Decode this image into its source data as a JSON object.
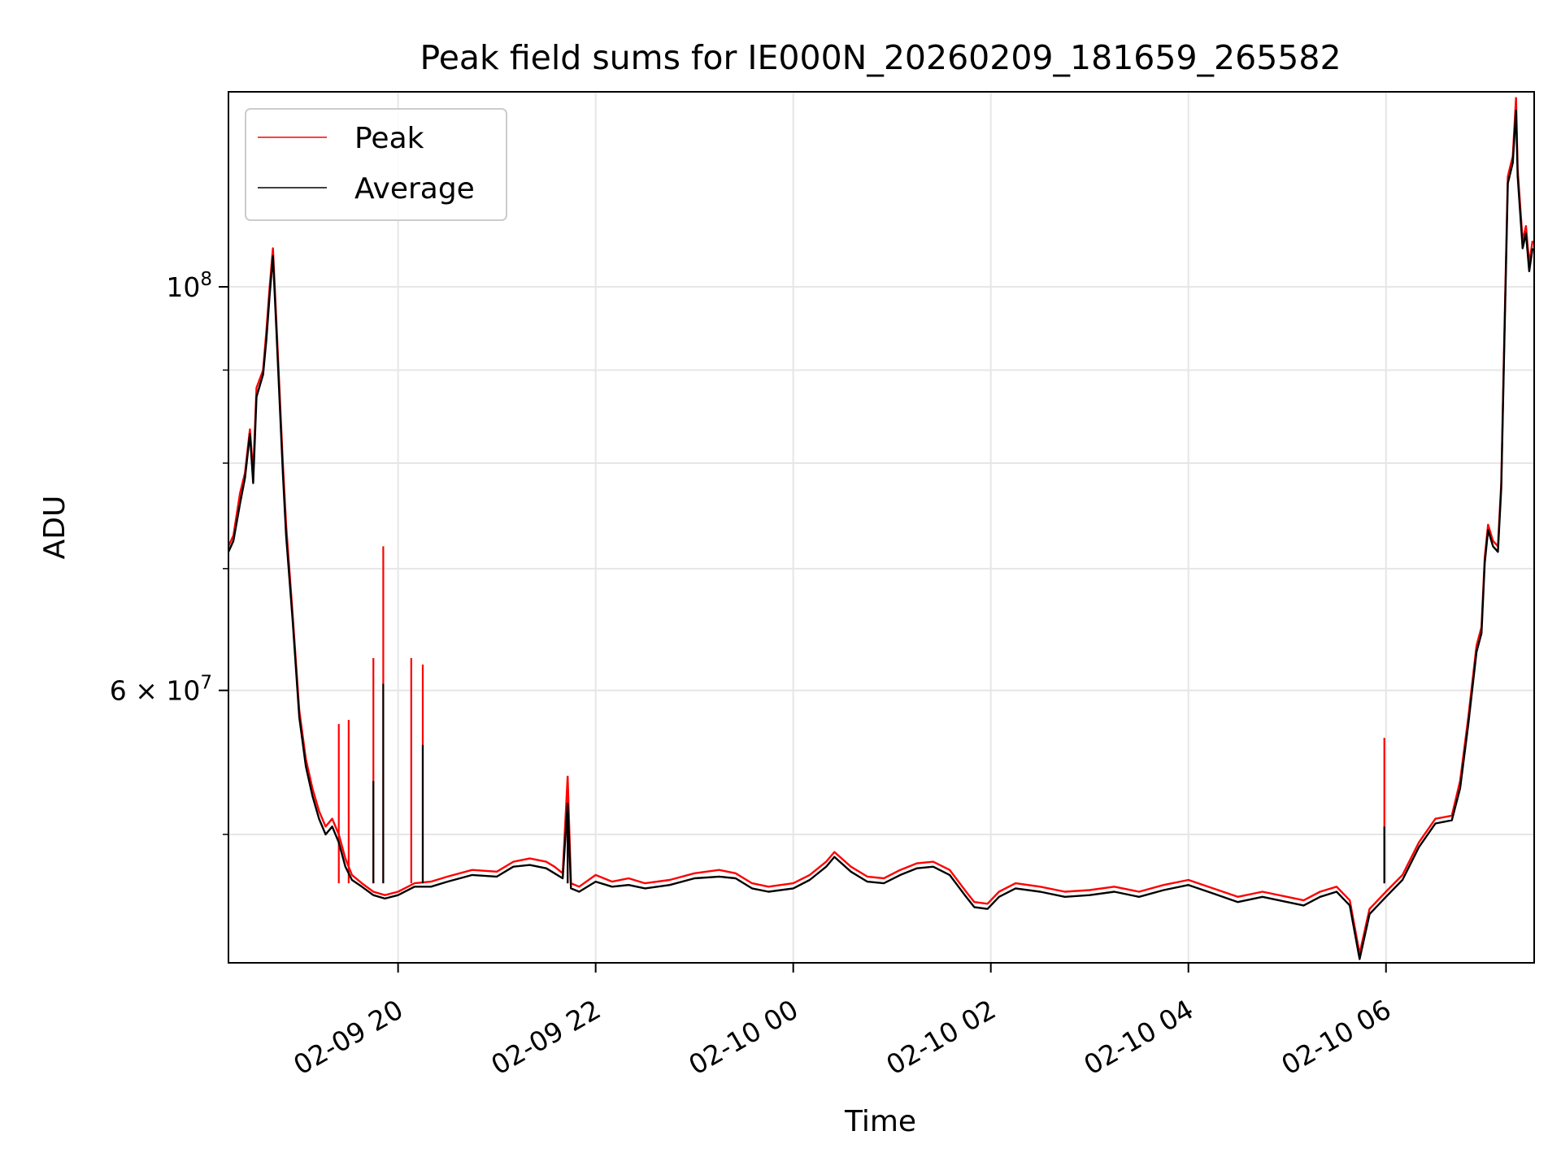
{
  "chart_data": {
    "type": "line",
    "title": "Peak field sums for IE000N_20260209_181659_265582",
    "xlabel": "Time",
    "ylabel": "ADU",
    "yscale": "log",
    "x_range": [
      "2026-02-09 18:16:59",
      "2026-02-10 07:30:00"
    ],
    "ylim": [
      42500000,
      128000000
    ],
    "x_ticks": [
      "02-09 20",
      "02-09 22",
      "02-10 00",
      "02-10 02",
      "02-10 04",
      "02-10 06"
    ],
    "x_tick_times": [
      "2026-02-09 20:00",
      "2026-02-09 22:00",
      "2026-02-10 00:00",
      "2026-02-10 02:00",
      "2026-02-10 04:00",
      "2026-02-10 06:00"
    ],
    "y_ticks_major": [
      {
        "value": 100000000,
        "base": "10",
        "exp": "8",
        "coef": ""
      },
      {
        "value": 60000000,
        "base": "10",
        "exp": "7",
        "coef": "6 × "
      }
    ],
    "y_ticks_minor": [
      50000000,
      70000000,
      80000000,
      90000000
    ],
    "grid": true,
    "legend_position": "upper-left",
    "series": [
      {
        "name": "Peak",
        "color": "#ff0000",
        "points": [
          [
            "2026-02-09 18:17",
            72000000
          ],
          [
            "2026-02-09 18:20",
            73000000
          ],
          [
            "2026-02-09 18:24",
            77000000
          ],
          [
            "2026-02-09 18:27",
            79000000
          ],
          [
            "2026-02-09 18:30",
            83500000
          ],
          [
            "2026-02-09 18:32",
            79000000
          ],
          [
            "2026-02-09 18:34",
            88000000
          ],
          [
            "2026-02-09 18:38",
            90000000
          ],
          [
            "2026-02-09 18:40",
            94500000
          ],
          [
            "2026-02-09 18:42",
            100000000
          ],
          [
            "2026-02-09 18:44",
            105000000
          ],
          [
            "2026-02-09 18:46",
            96000000
          ],
          [
            "2026-02-09 18:50",
            80000000
          ],
          [
            "2026-02-09 18:52",
            74000000
          ],
          [
            "2026-02-09 18:56",
            66000000
          ],
          [
            "2026-02-09 19:00",
            58500000
          ],
          [
            "2026-02-09 19:04",
            55000000
          ],
          [
            "2026-02-09 19:08",
            53000000
          ],
          [
            "2026-02-09 19:12",
            51500000
          ],
          [
            "2026-02-09 19:16",
            50500000
          ],
          [
            "2026-02-09 19:20",
            51000000
          ],
          [
            "2026-02-09 19:24",
            50000000
          ],
          [
            "2026-02-09 19:28",
            48500000
          ],
          [
            "2026-02-09 19:32",
            47500000
          ],
          [
            "2026-02-09 19:38",
            47000000
          ],
          [
            "2026-02-09 19:45",
            46500000
          ],
          [
            "2026-02-09 19:52",
            46300000
          ],
          [
            "2026-02-09 20:00",
            46500000
          ],
          [
            "2026-02-09 20:10",
            47000000
          ],
          [
            "2026-02-09 20:20",
            47100000
          ],
          [
            "2026-02-09 20:30",
            47400000
          ],
          [
            "2026-02-09 20:45",
            47800000
          ],
          [
            "2026-02-09 21:00",
            47700000
          ],
          [
            "2026-02-09 21:10",
            48300000
          ],
          [
            "2026-02-09 21:20",
            48500000
          ],
          [
            "2026-02-09 21:30",
            48300000
          ],
          [
            "2026-02-09 21:35",
            48000000
          ],
          [
            "2026-02-09 21:40",
            47600000
          ],
          [
            "2026-02-09 21:43",
            53800000
          ],
          [
            "2026-02-09 21:45",
            47000000
          ],
          [
            "2026-02-09 21:50",
            46800000
          ],
          [
            "2026-02-09 22:00",
            47500000
          ],
          [
            "2026-02-09 22:10",
            47100000
          ],
          [
            "2026-02-09 22:20",
            47300000
          ],
          [
            "2026-02-09 22:30",
            47000000
          ],
          [
            "2026-02-09 22:45",
            47200000
          ],
          [
            "2026-02-09 23:00",
            47600000
          ],
          [
            "2026-02-09 23:15",
            47800000
          ],
          [
            "2026-02-09 23:25",
            47600000
          ],
          [
            "2026-02-09 23:35",
            47000000
          ],
          [
            "2026-02-09 23:45",
            46800000
          ],
          [
            "2026-02-10 00:00",
            47000000
          ],
          [
            "2026-02-10 00:10",
            47500000
          ],
          [
            "2026-02-10 00:20",
            48300000
          ],
          [
            "2026-02-10 00:25",
            48900000
          ],
          [
            "2026-02-10 00:35",
            48000000
          ],
          [
            "2026-02-10 00:45",
            47400000
          ],
          [
            "2026-02-10 00:55",
            47300000
          ],
          [
            "2026-02-10 01:05",
            47800000
          ],
          [
            "2026-02-10 01:15",
            48200000
          ],
          [
            "2026-02-10 01:25",
            48300000
          ],
          [
            "2026-02-10 01:35",
            47800000
          ],
          [
            "2026-02-10 01:45",
            46500000
          ],
          [
            "2026-02-10 01:50",
            45900000
          ],
          [
            "2026-02-10 01:58",
            45800000
          ],
          [
            "2026-02-10 02:05",
            46500000
          ],
          [
            "2026-02-10 02:15",
            47000000
          ],
          [
            "2026-02-10 02:30",
            46800000
          ],
          [
            "2026-02-10 02:45",
            46500000
          ],
          [
            "2026-02-10 03:00",
            46600000
          ],
          [
            "2026-02-10 03:15",
            46800000
          ],
          [
            "2026-02-10 03:30",
            46500000
          ],
          [
            "2026-02-10 03:45",
            46900000
          ],
          [
            "2026-02-10 04:00",
            47200000
          ],
          [
            "2026-02-10 04:15",
            46700000
          ],
          [
            "2026-02-10 04:30",
            46200000
          ],
          [
            "2026-02-10 04:45",
            46500000
          ],
          [
            "2026-02-10 05:00",
            46200000
          ],
          [
            "2026-02-10 05:10",
            46000000
          ],
          [
            "2026-02-10 05:20",
            46500000
          ],
          [
            "2026-02-10 05:30",
            46800000
          ],
          [
            "2026-02-10 05:38",
            46000000
          ],
          [
            "2026-02-10 05:44",
            43000000
          ],
          [
            "2026-02-10 05:50",
            45500000
          ],
          [
            "2026-02-10 06:00",
            46500000
          ],
          [
            "2026-02-10 06:10",
            47500000
          ],
          [
            "2026-02-10 06:20",
            49500000
          ],
          [
            "2026-02-10 06:30",
            51000000
          ],
          [
            "2026-02-10 06:40",
            51200000
          ],
          [
            "2026-02-10 06:45",
            53500000
          ],
          [
            "2026-02-10 06:50",
            58000000
          ],
          [
            "2026-02-10 06:55",
            63500000
          ],
          [
            "2026-02-10 06:58",
            65000000
          ],
          [
            "2026-02-10 07:00",
            71000000
          ],
          [
            "2026-02-10 07:02",
            74000000
          ],
          [
            "2026-02-10 07:05",
            72500000
          ],
          [
            "2026-02-10 07:08",
            72000000
          ],
          [
            "2026-02-10 07:10",
            78000000
          ],
          [
            "2026-02-10 07:12",
            95000000
          ],
          [
            "2026-02-10 07:14",
            115000000
          ],
          [
            "2026-02-10 07:17",
            118000000
          ],
          [
            "2026-02-10 07:19",
            127000000
          ],
          [
            "2026-02-10 07:20",
            116000000
          ],
          [
            "2026-02-10 07:23",
            106000000
          ],
          [
            "2026-02-10 07:25",
            108000000
          ],
          [
            "2026-02-10 07:27",
            103000000
          ],
          [
            "2026-02-10 07:29",
            106000000
          ]
        ],
        "spikes": [
          [
            "2026-02-09 19:24",
            57500000
          ],
          [
            "2026-02-09 19:30",
            57800000
          ],
          [
            "2026-02-09 19:45",
            62500000
          ],
          [
            "2026-02-09 19:51",
            72000000
          ],
          [
            "2026-02-09 20:08",
            62500000
          ],
          [
            "2026-02-09 20:15",
            62000000
          ],
          [
            "2026-02-09 21:43",
            53800000
          ],
          [
            "2026-02-10 05:59",
            56500000
          ]
        ]
      },
      {
        "name": "Average",
        "color": "#000000",
        "points": [
          [
            "2026-02-09 18:17",
            71500000
          ],
          [
            "2026-02-09 18:20",
            72500000
          ],
          [
            "2026-02-09 18:24",
            76000000
          ],
          [
            "2026-02-09 18:27",
            78500000
          ],
          [
            "2026-02-09 18:30",
            83000000
          ],
          [
            "2026-02-09 18:32",
            78000000
          ],
          [
            "2026-02-09 18:34",
            87000000
          ],
          [
            "2026-02-09 18:38",
            89500000
          ],
          [
            "2026-02-09 18:40",
            93500000
          ],
          [
            "2026-02-09 18:42",
            99000000
          ],
          [
            "2026-02-09 18:44",
            104000000
          ],
          [
            "2026-02-09 18:46",
            95000000
          ],
          [
            "2026-02-09 18:50",
            79000000
          ],
          [
            "2026-02-09 18:52",
            73000000
          ],
          [
            "2026-02-09 18:56",
            65500000
          ],
          [
            "2026-02-09 19:00",
            58000000
          ],
          [
            "2026-02-09 19:04",
            54500000
          ],
          [
            "2026-02-09 19:08",
            52500000
          ],
          [
            "2026-02-09 19:12",
            51000000
          ],
          [
            "2026-02-09 19:16",
            50000000
          ],
          [
            "2026-02-09 19:20",
            50500000
          ],
          [
            "2026-02-09 19:24",
            49500000
          ],
          [
            "2026-02-09 19:28",
            48000000
          ],
          [
            "2026-02-09 19:32",
            47200000
          ],
          [
            "2026-02-09 19:38",
            46800000
          ],
          [
            "2026-02-09 19:45",
            46300000
          ],
          [
            "2026-02-09 19:52",
            46100000
          ],
          [
            "2026-02-09 20:00",
            46300000
          ],
          [
            "2026-02-09 20:10",
            46800000
          ],
          [
            "2026-02-09 20:20",
            46800000
          ],
          [
            "2026-02-09 20:30",
            47100000
          ],
          [
            "2026-02-09 20:45",
            47500000
          ],
          [
            "2026-02-09 21:00",
            47400000
          ],
          [
            "2026-02-09 21:10",
            48000000
          ],
          [
            "2026-02-09 21:20",
            48100000
          ],
          [
            "2026-02-09 21:30",
            47900000
          ],
          [
            "2026-02-09 21:35",
            47600000
          ],
          [
            "2026-02-09 21:40",
            47300000
          ],
          [
            "2026-02-09 21:43",
            52000000
          ],
          [
            "2026-02-09 21:45",
            46700000
          ],
          [
            "2026-02-09 21:50",
            46500000
          ],
          [
            "2026-02-09 22:00",
            47100000
          ],
          [
            "2026-02-09 22:10",
            46800000
          ],
          [
            "2026-02-09 22:20",
            46900000
          ],
          [
            "2026-02-09 22:30",
            46700000
          ],
          [
            "2026-02-09 22:45",
            46900000
          ],
          [
            "2026-02-09 23:00",
            47300000
          ],
          [
            "2026-02-09 23:15",
            47400000
          ],
          [
            "2026-02-09 23:25",
            47300000
          ],
          [
            "2026-02-09 23:35",
            46700000
          ],
          [
            "2026-02-09 23:45",
            46500000
          ],
          [
            "2026-02-10 00:00",
            46700000
          ],
          [
            "2026-02-10 00:10",
            47200000
          ],
          [
            "2026-02-10 00:20",
            48000000
          ],
          [
            "2026-02-10 00:25",
            48600000
          ],
          [
            "2026-02-10 00:35",
            47700000
          ],
          [
            "2026-02-10 00:45",
            47100000
          ],
          [
            "2026-02-10 00:55",
            47000000
          ],
          [
            "2026-02-10 01:05",
            47500000
          ],
          [
            "2026-02-10 01:15",
            47900000
          ],
          [
            "2026-02-10 01:25",
            48000000
          ],
          [
            "2026-02-10 01:35",
            47500000
          ],
          [
            "2026-02-10 01:45",
            46200000
          ],
          [
            "2026-02-10 01:50",
            45600000
          ],
          [
            "2026-02-10 01:58",
            45500000
          ],
          [
            "2026-02-10 02:05",
            46200000
          ],
          [
            "2026-02-10 02:15",
            46700000
          ],
          [
            "2026-02-10 02:30",
            46500000
          ],
          [
            "2026-02-10 02:45",
            46200000
          ],
          [
            "2026-02-10 03:00",
            46300000
          ],
          [
            "2026-02-10 03:15",
            46500000
          ],
          [
            "2026-02-10 03:30",
            46200000
          ],
          [
            "2026-02-10 03:45",
            46600000
          ],
          [
            "2026-02-10 04:00",
            46900000
          ],
          [
            "2026-02-10 04:15",
            46400000
          ],
          [
            "2026-02-10 04:30",
            45900000
          ],
          [
            "2026-02-10 04:45",
            46200000
          ],
          [
            "2026-02-10 05:00",
            45900000
          ],
          [
            "2026-02-10 05:10",
            45700000
          ],
          [
            "2026-02-10 05:20",
            46200000
          ],
          [
            "2026-02-10 05:30",
            46500000
          ],
          [
            "2026-02-10 05:38",
            45700000
          ],
          [
            "2026-02-10 05:44",
            42700000
          ],
          [
            "2026-02-10 05:50",
            45200000
          ],
          [
            "2026-02-10 06:00",
            46200000
          ],
          [
            "2026-02-10 06:10",
            47200000
          ],
          [
            "2026-02-10 06:20",
            49200000
          ],
          [
            "2026-02-10 06:30",
            50700000
          ],
          [
            "2026-02-10 06:40",
            50900000
          ],
          [
            "2026-02-10 06:45",
            53000000
          ],
          [
            "2026-02-10 06:50",
            57500000
          ],
          [
            "2026-02-10 06:55",
            63000000
          ],
          [
            "2026-02-10 06:58",
            64500000
          ],
          [
            "2026-02-10 07:00",
            70500000
          ],
          [
            "2026-02-10 07:02",
            73500000
          ],
          [
            "2026-02-10 07:05",
            72000000
          ],
          [
            "2026-02-10 07:08",
            71500000
          ],
          [
            "2026-02-10 07:10",
            77500000
          ],
          [
            "2026-02-10 07:12",
            94000000
          ],
          [
            "2026-02-10 07:14",
            114000000
          ],
          [
            "2026-02-10 07:17",
            117000000
          ],
          [
            "2026-02-10 07:19",
            125000000
          ],
          [
            "2026-02-10 07:20",
            115000000
          ],
          [
            "2026-02-10 07:23",
            105000000
          ],
          [
            "2026-02-10 07:25",
            107000000
          ],
          [
            "2026-02-10 07:27",
            102000000
          ],
          [
            "2026-02-10 07:29",
            105000000
          ]
        ],
        "spikes": [
          [
            "2026-02-09 19:45",
            53500000
          ],
          [
            "2026-02-09 19:51",
            60500000
          ],
          [
            "2026-02-09 20:15",
            56000000
          ],
          [
            "2026-02-09 21:43",
            52000000
          ],
          [
            "2026-02-10 05:59",
            50500000
          ]
        ]
      }
    ]
  }
}
